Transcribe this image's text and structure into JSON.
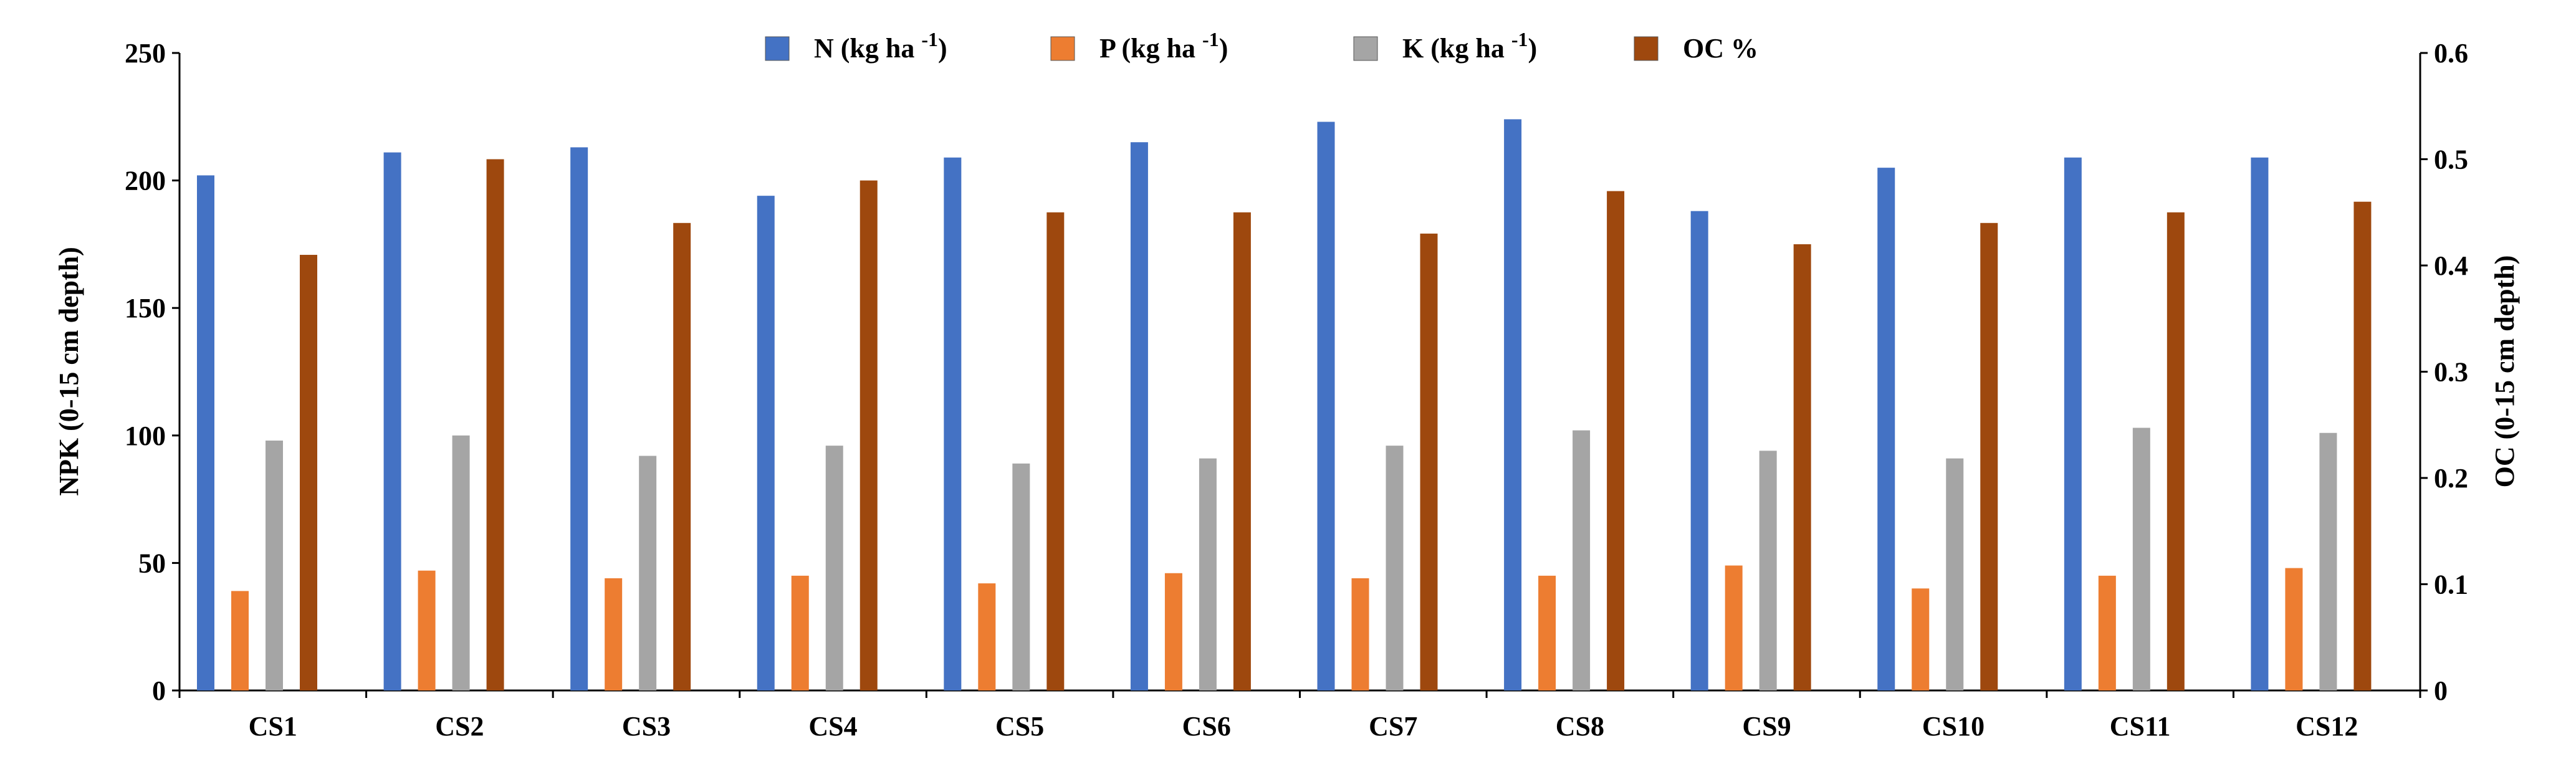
{
  "chart_data": {
    "type": "bar",
    "categories": [
      "CS1",
      "CS2",
      "CS3",
      "CS4",
      "CS5",
      "CS6",
      "CS7",
      "CS8",
      "CS9",
      "CS10",
      "CS11",
      "CS12"
    ],
    "series": [
      {
        "name": "N (kg ha -1)",
        "label_main": "N (kg ha ",
        "label_sup": "-1",
        "label_end": ")",
        "axis": "left",
        "color": "#4472C4",
        "values": [
          202,
          211,
          213,
          194,
          209,
          215,
          223,
          224,
          188,
          205,
          209,
          209
        ]
      },
      {
        "name": "P (kg ha -1)",
        "label_main": "P (kg ha ",
        "label_sup": "-1",
        "label_end": ")",
        "axis": "left",
        "color": "#ED7D31",
        "values": [
          39,
          47,
          44,
          45,
          42,
          46,
          44,
          45,
          49,
          40,
          45,
          48
        ]
      },
      {
        "name": "K (kg ha -1)",
        "label_main": "K (kg ha ",
        "label_sup": "-1",
        "label_end": ")",
        "axis": "left",
        "color": "#A5A5A5",
        "values": [
          98,
          100,
          92,
          96,
          89,
          91,
          96,
          102,
          94,
          91,
          103,
          101
        ]
      },
      {
        "name": "OC %",
        "label_main": "OC %",
        "label_sup": "",
        "label_end": "",
        "axis": "right",
        "color": "#9E480E",
        "values": [
          0.41,
          0.5,
          0.44,
          0.48,
          0.45,
          0.45,
          0.43,
          0.47,
          0.42,
          0.44,
          0.45,
          0.46
        ]
      }
    ],
    "ylabel": "NPK (0-15 cm depth)",
    "y2label": "OC (0-15 cm depth)",
    "ylim": [
      0,
      250
    ],
    "y2lim": [
      0,
      0.6
    ],
    "yticks": [
      "0",
      "50",
      "100",
      "150",
      "200",
      "250"
    ],
    "y2ticks": [
      "0",
      "0.1",
      "0.2",
      "0.3",
      "0.4",
      "0.5",
      "0.6"
    ],
    "legend_position": "top-center",
    "grid": false
  }
}
